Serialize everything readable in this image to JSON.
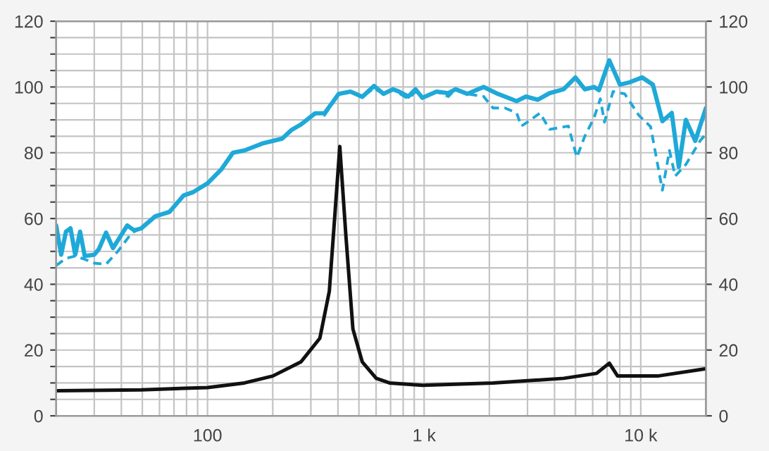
{
  "chart_data": {
    "type": "line",
    "log": "x",
    "grid": true,
    "marker": "none",
    "xlim": [
      20,
      20000
    ],
    "ylim": [
      0,
      120
    ],
    "y2lim": [
      0,
      120
    ],
    "xticks": [
      {
        "value": 20,
        "label": null
      },
      {
        "value": 30,
        "label": null
      },
      {
        "value": 40,
        "label": null
      },
      {
        "value": 50,
        "label": null
      },
      {
        "value": 60,
        "label": null
      },
      {
        "value": 70,
        "label": null
      },
      {
        "value": 80,
        "label": null
      },
      {
        "value": 90,
        "label": null
      },
      100,
      {
        "value": 200,
        "label": null
      },
      {
        "value": 300,
        "label": null
      },
      {
        "value": 400,
        "label": null
      },
      {
        "value": 500,
        "label": null
      },
      {
        "value": 600,
        "label": null
      },
      {
        "value": 700,
        "label": null
      },
      {
        "value": 800,
        "label": null
      },
      {
        "value": 900,
        "label": null
      },
      {
        "value": 1000,
        "label": "1 k"
      },
      {
        "value": 2000,
        "label": null
      },
      {
        "value": 3000,
        "label": null
      },
      {
        "value": 4000,
        "label": null
      },
      {
        "value": 5000,
        "label": null
      },
      {
        "value": 6000,
        "label": null
      },
      {
        "value": 7000,
        "label": null
      },
      {
        "value": 8000,
        "label": null
      },
      {
        "value": 9000,
        "label": null
      },
      {
        "value": 10000,
        "label": "10 k"
      },
      {
        "value": 20000,
        "label": null
      }
    ],
    "yticks": [
      0,
      {
        "value": 5,
        "label": null
      },
      {
        "value": 10,
        "label": null
      },
      {
        "value": 15,
        "label": null
      },
      20,
      {
        "value": 25,
        "label": null
      },
      {
        "value": 30,
        "label": null
      },
      {
        "value": 35,
        "label": null
      },
      40,
      {
        "value": 45,
        "label": null
      },
      {
        "value": 50,
        "label": null
      },
      {
        "value": 55,
        "label": null
      },
      60,
      {
        "value": 65,
        "label": null
      },
      {
        "value": 70,
        "label": null
      },
      {
        "value": 75,
        "label": null
      },
      80,
      {
        "value": 85,
        "label": null
      },
      {
        "value": 90,
        "label": null
      },
      {
        "value": 95,
        "label": null
      },
      100,
      {
        "value": 105,
        "label": null
      },
      {
        "value": 110,
        "label": null
      },
      {
        "value": 115,
        "label": null
      },
      120
    ],
    "y2ticks": [
      0,
      20,
      40,
      60,
      80,
      100,
      120
    ],
    "series": [
      {
        "color": "#1ea9d8",
        "line_style": "solid",
        "x": [
          20,
          21.1,
          22.2,
          23.3,
          24.5,
          25.8,
          27.1,
          30,
          31.5,
          34,
          36.6,
          42.6,
          45.8,
          49.4,
          57.4,
          66.7,
          77.5,
          85.7,
          100,
          116,
          131,
          148,
          181,
          221,
          245,
          270,
          314,
          347,
          403,
          457,
          518,
          587,
          649,
          717,
          765,
          846,
          912,
          982,
          1141,
          1294,
          1396,
          1581,
          1884,
          2188,
          2672,
          2952,
          3344,
          3790,
          4406,
          4994,
          5516,
          6095,
          6412,
          7160,
          8023,
          8866,
          10150,
          11380,
          12590,
          13910,
          14990,
          16150,
          17850,
          20000
        ],
        "values": [
          57.9,
          49,
          56,
          57,
          49,
          56,
          48.6,
          49,
          50.7,
          55.7,
          51,
          57.9,
          56.4,
          57,
          60.7,
          62,
          67,
          68,
          70.7,
          75,
          80,
          80.7,
          82.9,
          84.3,
          87,
          88.6,
          92,
          92,
          97.9,
          98.6,
          97,
          100.3,
          97.9,
          99.3,
          98.6,
          97.1,
          99.3,
          96.7,
          98.6,
          98.1,
          99.3,
          97.9,
          100,
          97.9,
          95.7,
          97.1,
          96.1,
          98.1,
          99.3,
          102.9,
          99.3,
          100,
          99,
          108.1,
          100.7,
          101.4,
          102.9,
          100.7,
          89.6,
          92.1,
          75.7,
          90,
          83.6,
          93.6
        ]
      },
      {
        "color": "#1ea9d8",
        "line_style": "dashed",
        "x": [
          20,
          22.2,
          24.5,
          27.1,
          30,
          34,
          38.5,
          44.8,
          49.4,
          57.4,
          66.7,
          77.5,
          85.7,
          100,
          116,
          131,
          148,
          181,
          221,
          245,
          270,
          314,
          347,
          403,
          457,
          518,
          587,
          649,
          717,
          765,
          846,
          912,
          982,
          1141,
          1294,
          1396,
          1581,
          1884,
          2080,
          2358,
          2672,
          2812,
          3105,
          3428,
          3790,
          4633,
          5070,
          5516,
          6095,
          6506,
          6803,
          7448,
          8433,
          9798,
          11110,
          12590,
          13570,
          14420,
          16150,
          18780,
          20000
        ],
        "values": [
          45.7,
          47.9,
          48.6,
          47.6,
          46.4,
          46.1,
          50,
          55.7,
          57,
          60.7,
          62,
          67,
          68,
          70.7,
          75,
          80,
          80.7,
          82.9,
          84.3,
          87,
          88.6,
          92,
          91.4,
          97.9,
          98.6,
          97,
          99.6,
          97.9,
          99.3,
          98.1,
          96.4,
          98.6,
          96.7,
          98.6,
          97.1,
          99.3,
          97.9,
          97.1,
          93.6,
          93.6,
          92.1,
          88.1,
          90,
          92.1,
          87.1,
          88.1,
          78.6,
          85,
          90.7,
          96.4,
          89.3,
          98.6,
          97.9,
          91.4,
          87.9,
          68.6,
          80.7,
          72.9,
          76.4,
          83.6,
          85.7
        ]
      },
      {
        "color": "#111111",
        "line_style": "solid",
        "x": [
          20,
          49.4,
          100,
          148,
          200,
          270,
          330,
          365,
          388,
          408,
          435,
          469,
          518,
          601,
          692,
          982,
          2080,
          4406,
          6250,
          7160,
          7820,
          11970,
          20000
        ],
        "values": [
          7.6,
          7.9,
          8.6,
          10,
          12.1,
          16.4,
          23.6,
          37.9,
          62,
          81.9,
          55,
          26.4,
          16.4,
          11.4,
          10,
          9.3,
          10,
          11.4,
          12.9,
          16,
          12.1,
          12.1,
          14.3
        ]
      }
    ]
  }
}
